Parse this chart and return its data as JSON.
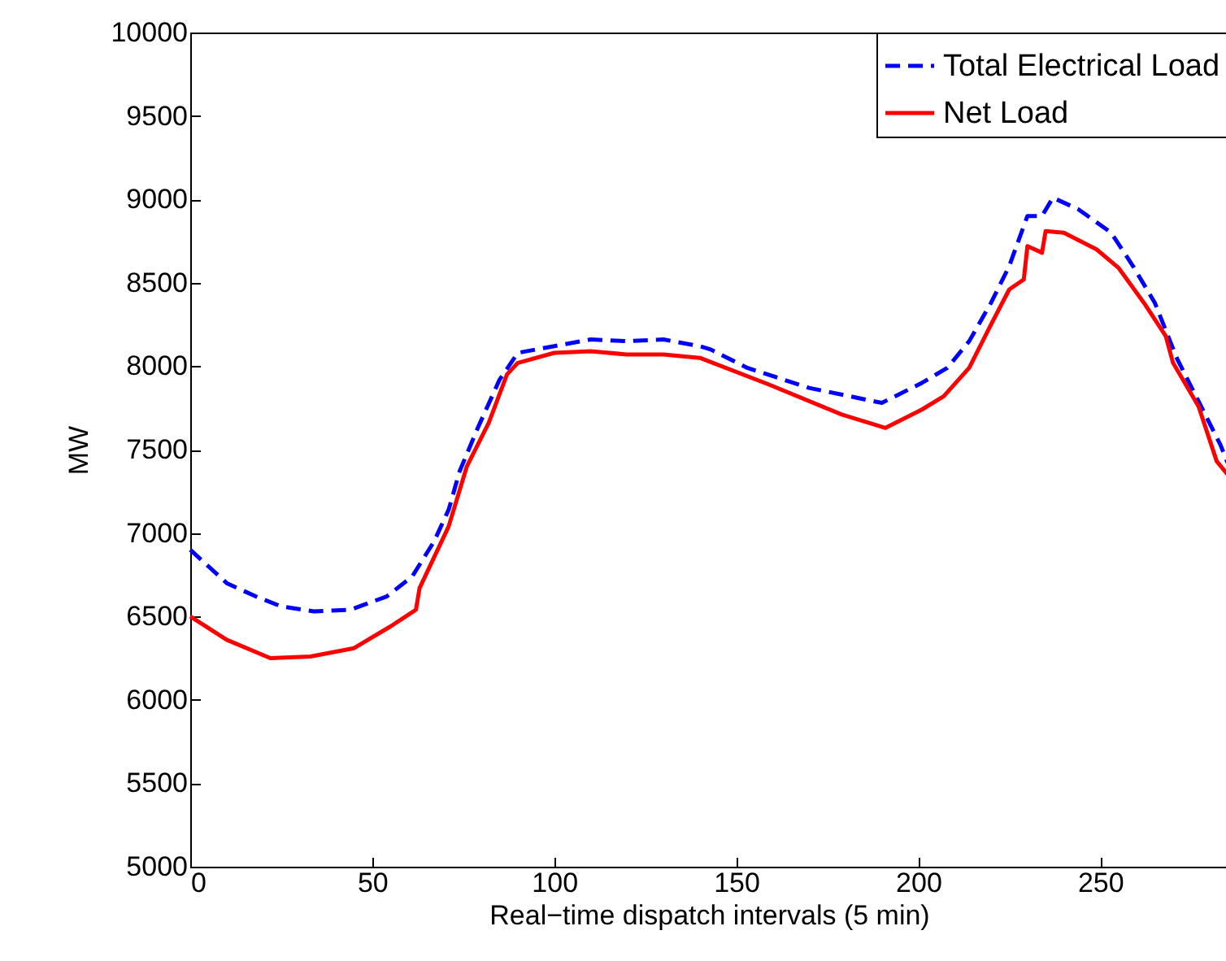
{
  "chart_data": {
    "type": "line",
    "xlabel": "Real−time dispatch intervals (5 min)",
    "ylabel": "MW",
    "xlim": [
      0,
      285
    ],
    "xticks": [
      0,
      50,
      100,
      150,
      200,
      250
    ],
    "ylim": [
      5000,
      10000
    ],
    "yticks": [
      5000,
      5500,
      6000,
      6500,
      7000,
      7500,
      8000,
      8500,
      9000,
      9500,
      10000
    ],
    "grid": false,
    "legend": "top right",
    "marker": "none",
    "series": [
      {
        "name": "Total Electrical Load",
        "color": "#0000ff",
        "line_style": "dashed",
        "x": [
          0,
          10,
          18,
          25,
          34,
          44,
          54,
          61,
          67,
          71,
          74,
          79,
          85,
          90,
          100,
          110,
          120,
          130,
          140,
          143,
          153,
          170,
          190,
          201,
          208,
          214,
          220,
          225,
          230,
          234,
          237,
          244,
          253,
          259,
          265,
          271,
          277,
          283,
          285
        ],
        "values": [
          6900,
          6700,
          6620,
          6560,
          6530,
          6540,
          6620,
          6740,
          6950,
          7140,
          7370,
          7630,
          7920,
          8080,
          8120,
          8160,
          8150,
          8160,
          8120,
          8100,
          7990,
          7870,
          7780,
          7900,
          7990,
          8150,
          8380,
          8600,
          8900,
          8900,
          9010,
          8940,
          8800,
          8600,
          8380,
          8050,
          7790,
          7530,
          7420
        ]
      },
      {
        "name": "Net Load",
        "color": "#ff0000",
        "line_style": "solid",
        "x": [
          0,
          10,
          22,
          33,
          45,
          55,
          62,
          63,
          71,
          76,
          82,
          87,
          90,
          100,
          110,
          120,
          130,
          140,
          159,
          179,
          191,
          201,
          207,
          214,
          220,
          225,
          229,
          230,
          234,
          235,
          240,
          249,
          255,
          262,
          268,
          270,
          277,
          282,
          285
        ],
        "values": [
          6500,
          6360,
          6250,
          6260,
          6310,
          6440,
          6540,
          6670,
          7040,
          7400,
          7660,
          7950,
          8020,
          8080,
          8090,
          8070,
          8070,
          8050,
          7890,
          7710,
          7630,
          7740,
          7820,
          7990,
          8250,
          8460,
          8520,
          8720,
          8680,
          8810,
          8800,
          8700,
          8590,
          8380,
          8180,
          8020,
          7760,
          7430,
          7350
        ]
      }
    ]
  }
}
